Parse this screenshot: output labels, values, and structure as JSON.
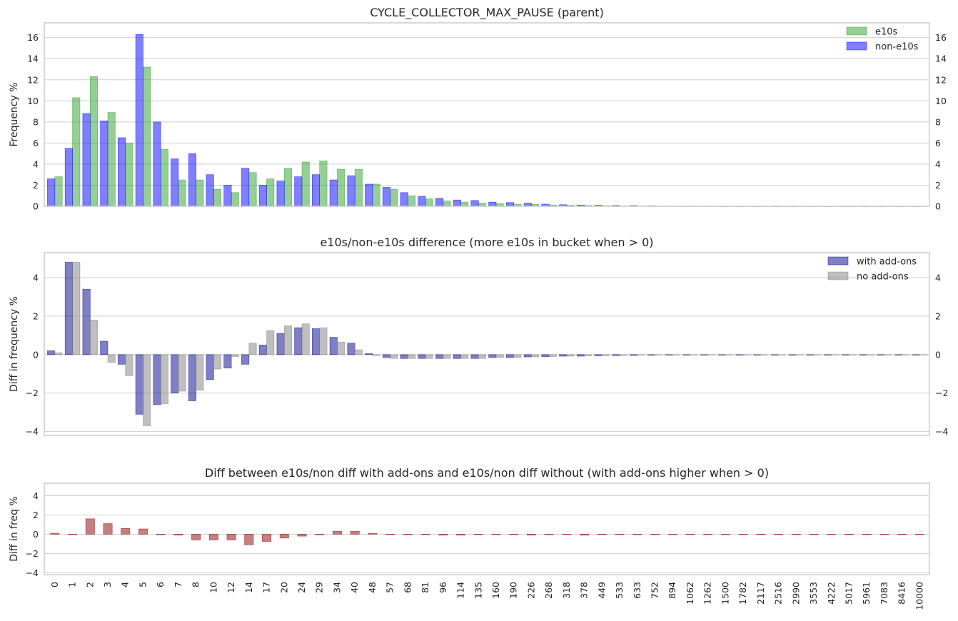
{
  "chart_data": [
    {
      "type": "bar",
      "title": "CYCLE_COLLECTOR_MAX_PAUSE (parent)",
      "ylabel": "Frequency %",
      "ylim": [
        0,
        17.4
      ],
      "yticks": [
        0,
        2,
        4,
        6,
        8,
        10,
        12,
        14,
        16
      ],
      "grid": true,
      "legend": "top-right",
      "colors": [
        "#2ca02c",
        "#0000ff"
      ],
      "categories": [
        "0",
        "1",
        "2",
        "3",
        "4",
        "5",
        "6",
        "7",
        "8",
        "10",
        "12",
        "14",
        "17",
        "20",
        "24",
        "29",
        "34",
        "40",
        "48",
        "57",
        "68",
        "81",
        "96",
        "114",
        "135",
        "160",
        "190",
        "226",
        "268",
        "318",
        "378",
        "449",
        "533",
        "633",
        "752",
        "894",
        "1062",
        "1262",
        "1500",
        "1782",
        "2117",
        "2516",
        "2990",
        "3553",
        "4222",
        "5017",
        "5961",
        "7083",
        "8416",
        "10000"
      ],
      "series": [
        {
          "name": "e10s",
          "values": [
            2.8,
            10.3,
            12.3,
            8.9,
            6.0,
            13.2,
            5.4,
            2.5,
            2.5,
            1.6,
            1.3,
            3.2,
            2.6,
            3.6,
            4.2,
            4.3,
            3.5,
            3.5,
            2.1,
            1.6,
            1.0,
            0.7,
            0.5,
            0.4,
            0.3,
            0.25,
            0.2,
            0.2,
            0.12,
            0.1,
            0.08,
            0.06,
            0.04,
            0.03,
            0.02,
            0.02,
            0.01,
            0.01,
            0.01,
            0.01,
            0.01,
            0.01,
            0.01,
            0.01,
            0.01,
            0.01,
            0.01,
            0.01,
            0.01,
            0.01
          ]
        },
        {
          "name": "non-e10s",
          "values": [
            2.6,
            5.5,
            8.8,
            8.1,
            6.5,
            16.3,
            8.0,
            4.5,
            5.0,
            3.0,
            2.0,
            3.6,
            2.0,
            2.4,
            2.8,
            3.0,
            2.5,
            2.9,
            2.1,
            1.8,
            1.3,
            0.95,
            0.75,
            0.6,
            0.55,
            0.4,
            0.35,
            0.3,
            0.2,
            0.15,
            0.12,
            0.1,
            0.08,
            0.07,
            0.05,
            0.03,
            0.02,
            0.02,
            0.01,
            0.01,
            0.01,
            0.01,
            0.01,
            0.01,
            0.01,
            0.01,
            0.01,
            0.01,
            0.01,
            0.01
          ]
        }
      ]
    },
    {
      "type": "bar",
      "title": "e10s/non-e10s difference (more e10s in bucket when > 0)",
      "ylabel": "Diff in frequency %",
      "ylim": [
        -4.2,
        5.3
      ],
      "yticks": [
        -4,
        -2,
        0,
        2,
        4
      ],
      "grid": true,
      "legend": "top-right",
      "colors": [
        "#00008b",
        "#808080"
      ],
      "categories": [
        "0",
        "1",
        "2",
        "3",
        "4",
        "5",
        "6",
        "7",
        "8",
        "10",
        "12",
        "14",
        "17",
        "20",
        "24",
        "29",
        "34",
        "40",
        "48",
        "57",
        "68",
        "81",
        "96",
        "114",
        "135",
        "160",
        "190",
        "226",
        "268",
        "318",
        "378",
        "449",
        "533",
        "633",
        "752",
        "894",
        "1062",
        "1262",
        "1500",
        "1782",
        "2117",
        "2516",
        "2990",
        "3553",
        "4222",
        "5017",
        "5961",
        "7083",
        "8416",
        "10000"
      ],
      "series": [
        {
          "name": "with add-ons",
          "values": [
            0.2,
            4.8,
            3.4,
            0.7,
            -0.5,
            -3.1,
            -2.6,
            -2.0,
            -2.4,
            -1.3,
            -0.7,
            -0.5,
            0.5,
            1.1,
            1.4,
            1.35,
            0.9,
            0.6,
            0.05,
            -0.15,
            -0.2,
            -0.2,
            -0.2,
            -0.2,
            -0.2,
            -0.15,
            -0.15,
            -0.12,
            -0.1,
            -0.08,
            -0.08,
            -0.06,
            -0.05,
            -0.04,
            -0.03,
            -0.02,
            -0.02,
            -0.01,
            -0.01,
            -0.01,
            -0.01,
            -0.01,
            -0.01,
            -0.01,
            -0.01,
            -0.01,
            -0.01,
            -0.01,
            -0.01,
            -0.01
          ]
        },
        {
          "name": "no add-ons",
          "values": [
            0.1,
            4.8,
            1.8,
            -0.4,
            -1.1,
            -3.7,
            -2.55,
            -1.9,
            -1.85,
            -0.75,
            -0.1,
            0.6,
            1.25,
            1.5,
            1.6,
            1.4,
            0.65,
            0.25,
            -0.05,
            -0.2,
            -0.2,
            -0.2,
            -0.2,
            -0.2,
            -0.2,
            -0.15,
            -0.15,
            -0.12,
            -0.1,
            -0.08,
            -0.06,
            -0.05,
            -0.04,
            -0.03,
            -0.02,
            -0.02,
            -0.01,
            -0.01,
            -0.01,
            -0.01,
            -0.01,
            -0.01,
            -0.01,
            -0.01,
            -0.01,
            -0.01,
            -0.01,
            -0.01,
            -0.01,
            -0.01
          ]
        }
      ]
    },
    {
      "type": "bar",
      "title": "Diff between e10s/non diff with add-ons and e10s/non diff without (with add-ons higher when > 0)",
      "ylabel": "Diff in freq %",
      "ylim": [
        -4.2,
        5.3
      ],
      "yticks": [
        -4,
        -2,
        0,
        2,
        4
      ],
      "grid": true,
      "colors": [
        "#8b0000"
      ],
      "categories": [
        "0",
        "1",
        "2",
        "3",
        "4",
        "5",
        "6",
        "7",
        "8",
        "10",
        "12",
        "14",
        "17",
        "20",
        "24",
        "29",
        "34",
        "40",
        "48",
        "57",
        "68",
        "81",
        "96",
        "114",
        "135",
        "160",
        "190",
        "226",
        "268",
        "318",
        "378",
        "449",
        "533",
        "633",
        "752",
        "894",
        "1062",
        "1262",
        "1500",
        "1782",
        "2117",
        "2516",
        "2990",
        "3553",
        "4222",
        "5017",
        "5961",
        "7083",
        "8416",
        "10000"
      ],
      "series": [
        {
          "values": [
            0.1,
            0.0,
            1.6,
            1.1,
            0.6,
            0.55,
            -0.05,
            -0.1,
            -0.6,
            -0.6,
            -0.6,
            -1.1,
            -0.75,
            -0.4,
            -0.2,
            -0.05,
            0.3,
            0.3,
            0.1,
            0.0,
            -0.05,
            0.0,
            -0.1,
            -0.1,
            0.0,
            0.0,
            0.0,
            -0.1,
            0.0,
            0.0,
            -0.1,
            0.0,
            0.0,
            0.0,
            0.0,
            0.0,
            0.0,
            0.0,
            0.0,
            0.0,
            0.0,
            0.0,
            0.0,
            0.0,
            0.0,
            0.0,
            0.0,
            0.0,
            0.0,
            0.0
          ]
        }
      ]
    }
  ]
}
